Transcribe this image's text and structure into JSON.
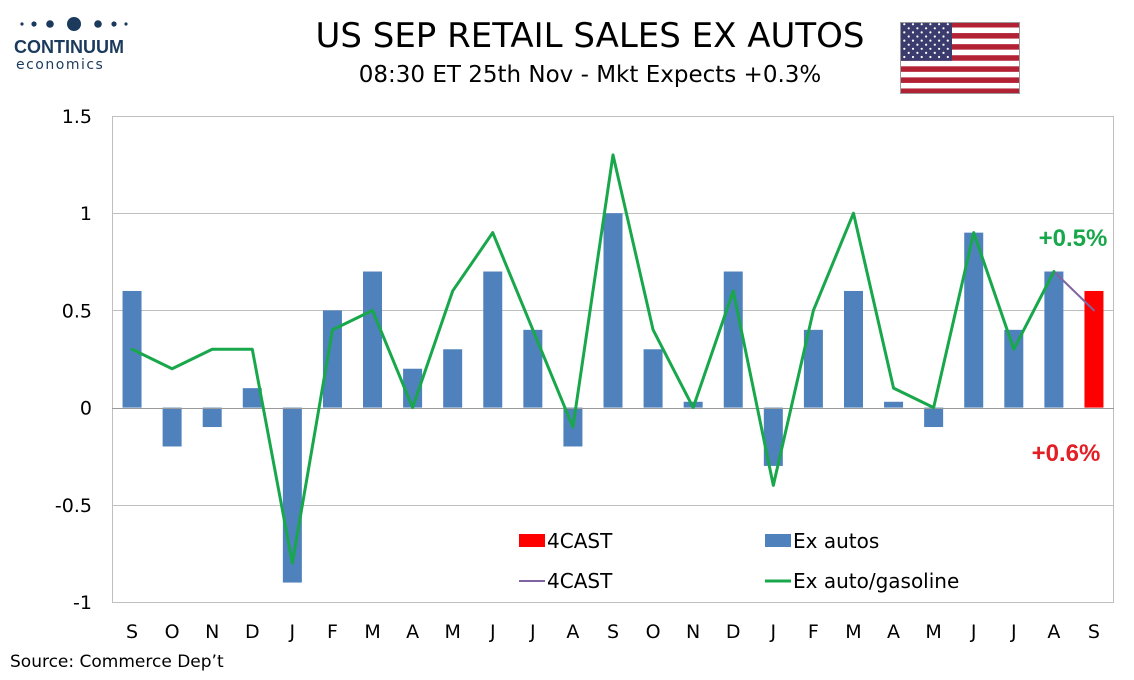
{
  "header": {
    "title": "US SEP RETAIL SALES EX AUTOS",
    "subtitle": "08:30 ET 25th Nov - Mkt Expects +0.3%"
  },
  "logo": {
    "word": "CONTINUUM",
    "sub": "economics"
  },
  "source": "Source: Commerce Dep’t",
  "colors": {
    "bars": "#4f81bd",
    "forecast_bar": "#ff0000",
    "line": "#19a74b",
    "forecast_line": "#8064a2",
    "grid": "#bfbfbf",
    "green_label": "#19a74b",
    "red_label": "#e31e24"
  },
  "chart_data": {
    "type": "bar",
    "categories": [
      "S",
      "O",
      "N",
      "D",
      "J",
      "F",
      "M",
      "A",
      "M",
      "J",
      "J",
      "A",
      "S",
      "O",
      "N",
      "D",
      "J",
      "F",
      "M",
      "A",
      "M",
      "J",
      "J",
      "A",
      "S"
    ],
    "ylim": [
      -1,
      1.5
    ],
    "yticks": [
      -1,
      -0.5,
      0,
      0.5,
      1,
      1.5
    ],
    "ytick_labels": [
      "-1",
      "-0.5",
      "0",
      "0.5",
      "1",
      "1.5"
    ],
    "grid": true,
    "legend_position": "bottom-center",
    "series": [
      {
        "name": "Ex autos",
        "type": "bar",
        "values": [
          0.6,
          -0.2,
          -0.1,
          0.1,
          -0.9,
          0.5,
          0.7,
          0.2,
          0.3,
          0.7,
          0.4,
          -0.2,
          1.0,
          0.3,
          0.03,
          0.7,
          -0.3,
          0.4,
          0.6,
          0.03,
          -0.1,
          0.9,
          0.4,
          0.7,
          null
        ]
      },
      {
        "name": "4CAST",
        "type": "bar",
        "values": [
          null,
          null,
          null,
          null,
          null,
          null,
          null,
          null,
          null,
          null,
          null,
          null,
          null,
          null,
          null,
          null,
          null,
          null,
          null,
          null,
          null,
          null,
          null,
          null,
          0.6
        ]
      },
      {
        "name": "Ex auto/gasoline",
        "type": "line",
        "values": [
          0.3,
          0.2,
          0.3,
          0.3,
          -0.8,
          0.4,
          0.5,
          0.0,
          0.6,
          0.9,
          0.4,
          -0.1,
          1.3,
          0.4,
          0.0,
          0.6,
          -0.4,
          0.5,
          1.0,
          0.1,
          0.0,
          0.9,
          0.3,
          0.7,
          null
        ]
      },
      {
        "name": "4CAST",
        "type": "line",
        "values": [
          null,
          null,
          null,
          null,
          null,
          null,
          null,
          null,
          null,
          null,
          null,
          null,
          null,
          null,
          null,
          null,
          null,
          null,
          null,
          null,
          null,
          null,
          null,
          0.7,
          0.5
        ]
      }
    ],
    "annotations": [
      {
        "text": "+0.5%",
        "color": "green"
      },
      {
        "text": "+0.6%",
        "color": "red"
      }
    ]
  }
}
